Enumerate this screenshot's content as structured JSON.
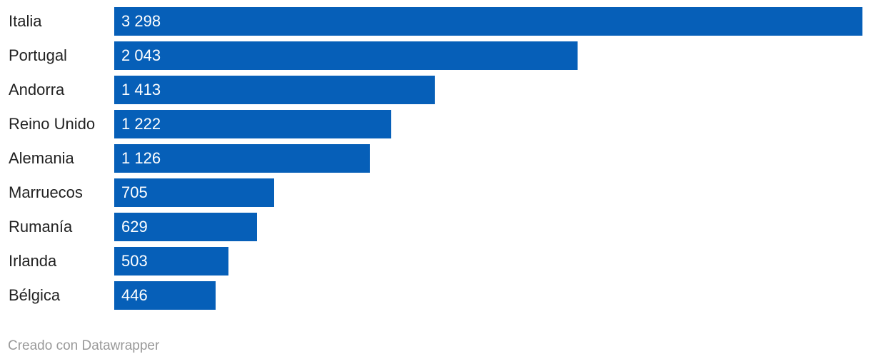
{
  "chart_data": {
    "type": "bar",
    "orientation": "horizontal",
    "categories": [
      "Italia",
      "Portugal",
      "Andorra",
      "Reino Unido",
      "Alemania",
      "Marruecos",
      "Rumanía",
      "Irlanda",
      "Bélgica"
    ],
    "values": [
      3298,
      2043,
      1413,
      1222,
      1126,
      705,
      629,
      503,
      446
    ],
    "value_labels": [
      "3 298",
      "2 043",
      "1 413",
      "1 222",
      "1 126",
      "705",
      "629",
      "503",
      "446"
    ],
    "bar_color": "#065fb8"
  },
  "footer": "Creado con Datawrapper"
}
